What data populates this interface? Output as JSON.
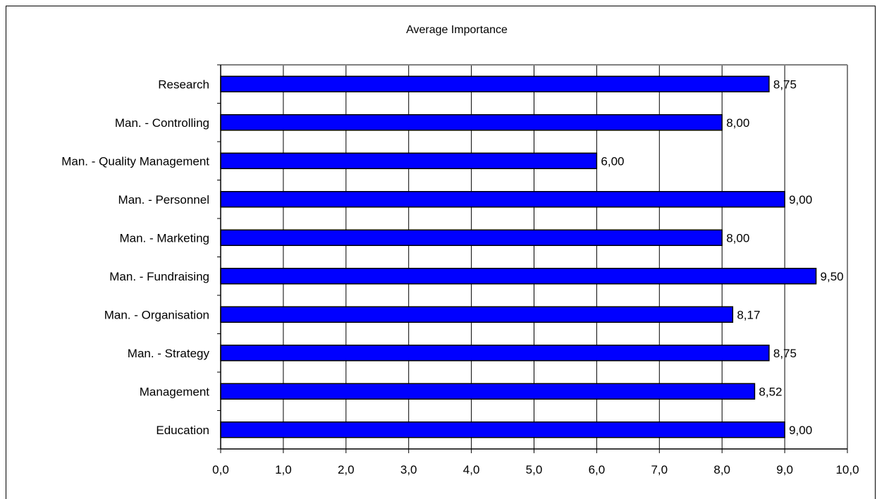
{
  "chart_data": {
    "type": "bar",
    "orientation": "horizontal",
    "title": "Average Importance",
    "xlabel": "",
    "ylabel": "",
    "categories": [
      "Research",
      "Man. - Controlling",
      "Man. - Quality Management",
      "Man. - Personnel",
      "Man. - Marketing",
      "Man. - Fundraising",
      "Man. - Organisation",
      "Man. - Strategy",
      "Management",
      "Education"
    ],
    "values": [
      8.75,
      8.0,
      6.0,
      9.0,
      8.0,
      9.5,
      8.17,
      8.75,
      8.52,
      9.0
    ],
    "value_labels": [
      "8,75",
      "8,00",
      "6,00",
      "9,00",
      "8,00",
      "9,50",
      "8,17",
      "8,75",
      "8,52",
      "9,00"
    ],
    "xlim": [
      0,
      10
    ],
    "xticks": [
      0,
      1,
      2,
      3,
      4,
      5,
      6,
      7,
      8,
      9,
      10
    ],
    "xtick_labels": [
      "0,0",
      "1,0",
      "2,0",
      "3,0",
      "4,0",
      "5,0",
      "6,0",
      "7,0",
      "8,0",
      "9,0",
      "10,0"
    ],
    "grid": "vertical",
    "legend": "none",
    "bar_color": "#0000ff"
  }
}
